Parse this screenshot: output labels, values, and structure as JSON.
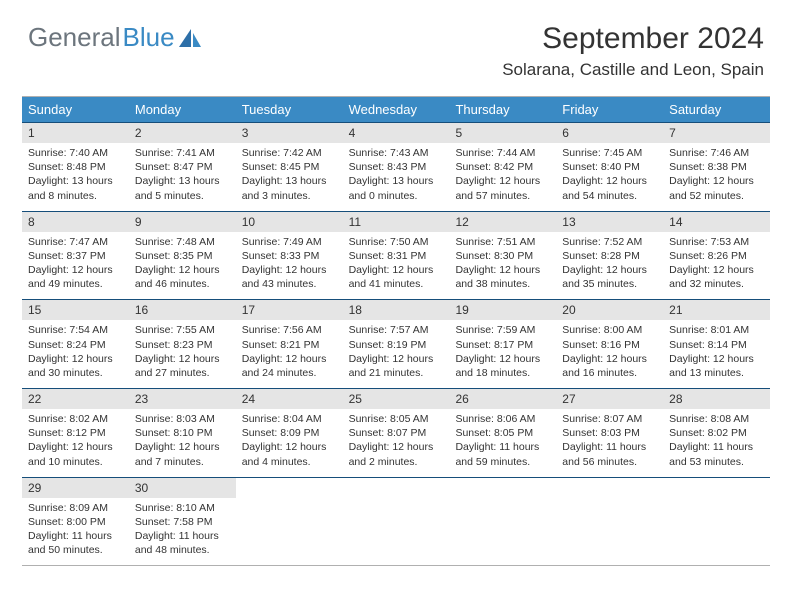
{
  "logo": {
    "text1": "General",
    "text2": "Blue"
  },
  "title": "September 2024",
  "location": "Solarana, Castille and Leon, Spain",
  "colors": {
    "header_bg": "#3a8ac4",
    "daynum_bg": "#e5e5e5",
    "border": "#164e7a",
    "logo_gray": "#6c757d",
    "logo_blue": "#3a8ac4"
  },
  "days_of_week": [
    "Sunday",
    "Monday",
    "Tuesday",
    "Wednesday",
    "Thursday",
    "Friday",
    "Saturday"
  ],
  "weeks": [
    [
      {
        "n": "1",
        "sr": "7:40 AM",
        "ss": "8:48 PM",
        "dh": "13",
        "dm": "8"
      },
      {
        "n": "2",
        "sr": "7:41 AM",
        "ss": "8:47 PM",
        "dh": "13",
        "dm": "5"
      },
      {
        "n": "3",
        "sr": "7:42 AM",
        "ss": "8:45 PM",
        "dh": "13",
        "dm": "3"
      },
      {
        "n": "4",
        "sr": "7:43 AM",
        "ss": "8:43 PM",
        "dh": "13",
        "dm": "0"
      },
      {
        "n": "5",
        "sr": "7:44 AM",
        "ss": "8:42 PM",
        "dh": "12",
        "dm": "57"
      },
      {
        "n": "6",
        "sr": "7:45 AM",
        "ss": "8:40 PM",
        "dh": "12",
        "dm": "54"
      },
      {
        "n": "7",
        "sr": "7:46 AM",
        "ss": "8:38 PM",
        "dh": "12",
        "dm": "52"
      }
    ],
    [
      {
        "n": "8",
        "sr": "7:47 AM",
        "ss": "8:37 PM",
        "dh": "12",
        "dm": "49"
      },
      {
        "n": "9",
        "sr": "7:48 AM",
        "ss": "8:35 PM",
        "dh": "12",
        "dm": "46"
      },
      {
        "n": "10",
        "sr": "7:49 AM",
        "ss": "8:33 PM",
        "dh": "12",
        "dm": "43"
      },
      {
        "n": "11",
        "sr": "7:50 AM",
        "ss": "8:31 PM",
        "dh": "12",
        "dm": "41"
      },
      {
        "n": "12",
        "sr": "7:51 AM",
        "ss": "8:30 PM",
        "dh": "12",
        "dm": "38"
      },
      {
        "n": "13",
        "sr": "7:52 AM",
        "ss": "8:28 PM",
        "dh": "12",
        "dm": "35"
      },
      {
        "n": "14",
        "sr": "7:53 AM",
        "ss": "8:26 PM",
        "dh": "12",
        "dm": "32"
      }
    ],
    [
      {
        "n": "15",
        "sr": "7:54 AM",
        "ss": "8:24 PM",
        "dh": "12",
        "dm": "30"
      },
      {
        "n": "16",
        "sr": "7:55 AM",
        "ss": "8:23 PM",
        "dh": "12",
        "dm": "27"
      },
      {
        "n": "17",
        "sr": "7:56 AM",
        "ss": "8:21 PM",
        "dh": "12",
        "dm": "24"
      },
      {
        "n": "18",
        "sr": "7:57 AM",
        "ss": "8:19 PM",
        "dh": "12",
        "dm": "21"
      },
      {
        "n": "19",
        "sr": "7:59 AM",
        "ss": "8:17 PM",
        "dh": "12",
        "dm": "18"
      },
      {
        "n": "20",
        "sr": "8:00 AM",
        "ss": "8:16 PM",
        "dh": "12",
        "dm": "16"
      },
      {
        "n": "21",
        "sr": "8:01 AM",
        "ss": "8:14 PM",
        "dh": "12",
        "dm": "13"
      }
    ],
    [
      {
        "n": "22",
        "sr": "8:02 AM",
        "ss": "8:12 PM",
        "dh": "12",
        "dm": "10"
      },
      {
        "n": "23",
        "sr": "8:03 AM",
        "ss": "8:10 PM",
        "dh": "12",
        "dm": "7"
      },
      {
        "n": "24",
        "sr": "8:04 AM",
        "ss": "8:09 PM",
        "dh": "12",
        "dm": "4"
      },
      {
        "n": "25",
        "sr": "8:05 AM",
        "ss": "8:07 PM",
        "dh": "12",
        "dm": "2"
      },
      {
        "n": "26",
        "sr": "8:06 AM",
        "ss": "8:05 PM",
        "dh": "11",
        "dm": "59"
      },
      {
        "n": "27",
        "sr": "8:07 AM",
        "ss": "8:03 PM",
        "dh": "11",
        "dm": "56"
      },
      {
        "n": "28",
        "sr": "8:08 AM",
        "ss": "8:02 PM",
        "dh": "11",
        "dm": "53"
      }
    ],
    [
      {
        "n": "29",
        "sr": "8:09 AM",
        "ss": "8:00 PM",
        "dh": "11",
        "dm": "50"
      },
      {
        "n": "30",
        "sr": "8:10 AM",
        "ss": "7:58 PM",
        "dh": "11",
        "dm": "48"
      },
      null,
      null,
      null,
      null,
      null
    ]
  ]
}
